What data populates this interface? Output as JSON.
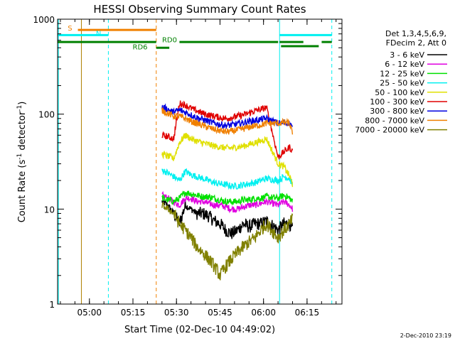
{
  "chart_data": {
    "type": "line",
    "title": "HESSI Observing Summary Count Rates",
    "xlabel": "Start Time (02-Dec-10 04:49:02)",
    "ylabel_main": "Count Rate (s",
    "ylabel_sup1": "-1",
    "ylabel_mid": " detector",
    "ylabel_sup2": "-1",
    "ylabel_end": ")",
    "yscale": "log",
    "ylim": [
      1,
      1000
    ],
    "xlim_minutes": [
      0,
      98
    ],
    "x_ticks": [
      {
        "label": "05:00",
        "t": 10.97
      },
      {
        "label": "05:15",
        "t": 25.97
      },
      {
        "label": "05:30",
        "t": 40.97
      },
      {
        "label": "05:45",
        "t": 55.97
      },
      {
        "label": "06:00",
        "t": 70.97
      },
      {
        "label": "06:15",
        "t": 85.97
      }
    ],
    "y_ticks": [
      {
        "label": "1",
        "v": 1
      },
      {
        "label": "10",
        "v": 10
      },
      {
        "label": "100",
        "v": 100
      },
      {
        "label": "1000",
        "v": 1000
      }
    ],
    "legend": {
      "position": "top-right",
      "header": [
        "Det 1,3,4,5,6,9,",
        "FDecim 2, Att 0"
      ]
    },
    "series": [
      {
        "name": "3 - 6 keV",
        "color": "#000000",
        "x": [
          36,
          38,
          40,
          42,
          44,
          46,
          48,
          50,
          52,
          54,
          56,
          58,
          60,
          62,
          64,
          66,
          68,
          70,
          72,
          76,
          78,
          80,
          81
        ],
        "y": [
          12,
          11,
          9,
          7,
          11,
          10,
          9,
          9,
          8.5,
          7.5,
          7,
          6,
          5.5,
          6,
          7,
          6.5,
          7,
          7,
          7.5,
          6,
          7,
          7,
          6
        ]
      },
      {
        "name": "6 - 12 keV",
        "color": "#e000e0",
        "x": [
          36,
          38,
          40,
          42,
          44,
          46,
          48,
          50,
          52,
          54,
          56,
          58,
          60,
          62,
          64,
          66,
          68,
          70,
          72,
          76,
          78,
          80,
          81
        ],
        "y": [
          14,
          13,
          12,
          11,
          13,
          13,
          12,
          12,
          11.5,
          11,
          11,
          10.5,
          10,
          10,
          10.5,
          11,
          11,
          11.5,
          12,
          11,
          12,
          11,
          10
        ]
      },
      {
        "name": "12 - 25 keV",
        "color": "#00e000",
        "x": [
          36,
          38,
          40,
          42,
          44,
          46,
          48,
          50,
          52,
          54,
          56,
          58,
          60,
          62,
          64,
          66,
          68,
          70,
          72,
          76,
          78,
          80,
          81
        ],
        "y": [
          13,
          12.5,
          12,
          13,
          15,
          14.5,
          14,
          13.5,
          13.5,
          13,
          12.5,
          12,
          12,
          12,
          12.5,
          12.5,
          13,
          13,
          13.5,
          13,
          14,
          13,
          12
        ]
      },
      {
        "name": "25 - 50 keV",
        "color": "#00f0f0",
        "x": [
          36,
          38,
          40,
          42,
          44,
          46,
          48,
          50,
          52,
          54,
          56,
          58,
          60,
          62,
          64,
          66,
          68,
          70,
          72,
          76,
          78,
          80,
          81
        ],
        "y": [
          26,
          24,
          22,
          20,
          25,
          23,
          22,
          21,
          20,
          19,
          18.5,
          18,
          17.5,
          17.5,
          18,
          18.5,
          19,
          20,
          21,
          20,
          22,
          21,
          18
        ]
      },
      {
        "name": "50 - 100 keV",
        "color": "#e0e000",
        "x": [
          36,
          38,
          40,
          42,
          44,
          46,
          48,
          50,
          52,
          54,
          56,
          58,
          60,
          62,
          64,
          66,
          68,
          70,
          72,
          76,
          78,
          80,
          81
        ],
        "y": [
          38,
          36,
          34,
          50,
          60,
          55,
          52,
          50,
          48,
          46,
          45,
          44,
          44,
          45,
          46,
          48,
          50,
          52,
          55,
          30,
          28,
          22,
          18
        ]
      },
      {
        "name": "100 - 300 keV",
        "color": "#e00000",
        "x": [
          36,
          38,
          40,
          42,
          44,
          46,
          48,
          50,
          52,
          54,
          56,
          58,
          60,
          62,
          64,
          66,
          68,
          70,
          72,
          76,
          78,
          80,
          81
        ],
        "y": [
          60,
          58,
          55,
          130,
          125,
          115,
          108,
          102,
          98,
          95,
          92,
          90,
          92,
          95,
          98,
          103,
          108,
          112,
          118,
          35,
          40,
          45,
          40
        ]
      },
      {
        "name": "300 - 800 keV",
        "color": "#0000e0",
        "x": [
          36,
          38,
          40,
          42,
          44,
          46,
          48,
          50,
          52,
          54,
          56,
          58,
          60,
          62,
          64,
          66,
          68,
          70,
          72,
          76,
          78,
          80,
          81
        ],
        "y": [
          120,
          112,
          105,
          110,
          105,
          98,
          92,
          88,
          84,
          80,
          78,
          76,
          77,
          79,
          81,
          84,
          86,
          88,
          90,
          80,
          82,
          80,
          70
        ]
      },
      {
        "name": "800 - 7000 keV",
        "color": "#f08000",
        "x": [
          36,
          38,
          40,
          42,
          44,
          46,
          48,
          50,
          52,
          54,
          56,
          58,
          60,
          62,
          64,
          66,
          68,
          70,
          72,
          76,
          78,
          80,
          81
        ],
        "y": [
          110,
          102,
          95,
          95,
          90,
          84,
          80,
          76,
          72,
          69,
          67,
          65,
          66,
          68,
          70,
          73,
          75,
          77,
          80,
          80,
          82,
          80,
          60
        ]
      },
      {
        "name": "7000 - 20000 keV",
        "color": "#808000",
        "x": [
          36,
          38,
          40,
          42,
          44,
          46,
          48,
          50,
          52,
          54,
          56,
          58,
          60,
          62,
          64,
          66,
          68,
          70,
          72,
          76,
          78,
          80,
          81
        ],
        "y": [
          11,
          10,
          9,
          7,
          6,
          5,
          4,
          3.5,
          3,
          2.5,
          2,
          2.5,
          3,
          3.5,
          4,
          4.5,
          5,
          6,
          7,
          5,
          6,
          7,
          8
        ]
      }
    ],
    "annotations": [
      {
        "label": "S",
        "color": "#f08000",
        "x": [
          7,
          34
        ],
        "y": 770
      },
      {
        "label": "N",
        "color": "#00f0f0",
        "x": [
          0,
          17.5
        ],
        "y": 680
      },
      {
        "label": "RD0",
        "color": "#008000",
        "x": [
          0,
          84.7
        ],
        "y": 575
      },
      {
        "label": "RD6",
        "color": "#008000",
        "x": [
          34,
          38.5
        ],
        "y": 500
      }
    ],
    "footer": "2-Dec-2010 23:19"
  }
}
